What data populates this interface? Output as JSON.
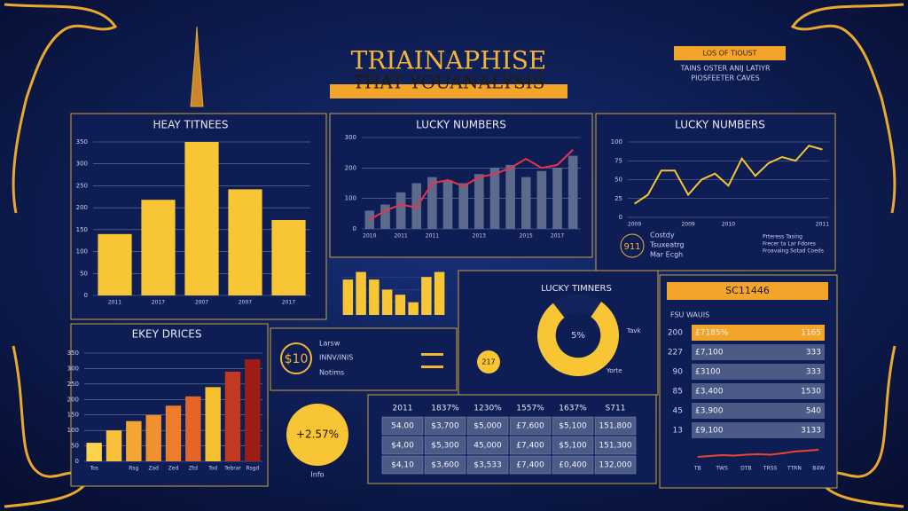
{
  "header": {
    "title": "TRIAINAPHISE",
    "subtitle": "THAT YOUANALYSIS"
  },
  "info_box": {
    "label": "LOS OF TIOUST",
    "lines": [
      "TAINS OSTER ANIJ LATIYR",
      "PIOSFEETER CAVES"
    ]
  },
  "badge": {
    "value": "$10",
    "lines": [
      "Larsw",
      "INNV/INIS",
      "Notims"
    ]
  },
  "change_circle": {
    "value": "+2.57%",
    "label": "Info"
  },
  "legend_notes": {
    "badge": "911",
    "left": [
      "Costdy",
      "Tsuxeatrg",
      "Mar Ecgh"
    ],
    "right": [
      "Prteress Tasing",
      "Frecer ta Lar Fdores",
      "Froavaing Sotad Coeds"
    ]
  },
  "table": {
    "header": [
      "2011",
      "1837%",
      "1230%",
      "1557%",
      "1637%",
      "S711"
    ],
    "rows": [
      [
        "54.00",
        "$3,700",
        "$5,000",
        "£7,600",
        "$5,100",
        "151,800"
      ],
      [
        "$4,00",
        "$5,300",
        "45,000",
        "£7,400",
        "$5,100",
        "151,300"
      ],
      [
        "$4,10",
        "$3,600",
        "$3,533",
        "£7,400",
        "£0,400",
        "132,000"
      ]
    ]
  },
  "side_table": {
    "title": "SC11446",
    "subtitle": "FSU WAUIS",
    "rows": [
      [
        "200",
        "£7185%",
        "1165"
      ],
      [
        "227",
        "£7,100",
        "333"
      ],
      [
        "90",
        "£3100",
        "333"
      ],
      [
        "85",
        "£3,400",
        "1530"
      ],
      [
        "45",
        "£3,900",
        "540"
      ],
      [
        "13",
        "£9,100",
        "3133"
      ]
    ]
  },
  "chart_data": [
    {
      "type": "bar",
      "title": "HEAY TITNEES",
      "categories": [
        "2011",
        "2017",
        "2007",
        "2007",
        "2017"
      ],
      "values": [
        140,
        218,
        350,
        242,
        172
      ],
      "color": "#f8c534",
      "ylim": [
        0,
        350
      ],
      "yticks": [
        0,
        50,
        100,
        150,
        200,
        250,
        300,
        350
      ],
      "grid": true
    },
    {
      "type": "combo",
      "title": "LUCKY NUMBERS",
      "categories": [
        "2010",
        null,
        "2011",
        null,
        "2011",
        null,
        null,
        "2013",
        null,
        null,
        "2015",
        null,
        "2017",
        null
      ],
      "series": [
        {
          "type": "bar",
          "color": "#5d6a8c",
          "values": [
            60,
            80,
            120,
            150,
            170,
            160,
            150,
            180,
            200,
            210,
            170,
            190,
            200,
            240
          ]
        },
        {
          "type": "line",
          "color": "#e8334a",
          "values": [
            30,
            60,
            80,
            70,
            150,
            160,
            140,
            170,
            180,
            200,
            230,
            200,
            210,
            260
          ]
        }
      ],
      "ylim": [
        0,
        300
      ],
      "yticks": [
        0,
        100,
        200,
        300
      ],
      "grid": true
    },
    {
      "type": "line",
      "title": "LUCKY NUMBERS",
      "categories": [
        "2009",
        null,
        null,
        null,
        "2009",
        null,
        null,
        "2010",
        null,
        null,
        null,
        null,
        null,
        null,
        "2011"
      ],
      "color": "#f5c431",
      "values": [
        18,
        30,
        62,
        62,
        30,
        50,
        58,
        42,
        78,
        55,
        72,
        80,
        75,
        95,
        90
      ],
      "ylim": [
        0,
        100
      ],
      "yticks": [
        0,
        25,
        50,
        75,
        100
      ],
      "grid": true
    },
    {
      "type": "bar",
      "categories": [
        null,
        null,
        null,
        null,
        null,
        null,
        null,
        null
      ],
      "values": [
        70,
        85,
        70,
        50,
        40,
        25,
        75,
        85
      ],
      "color": "#f8c534",
      "ylim": [
        0,
        100
      ],
      "grid": true
    },
    {
      "type": "pie",
      "title": "LUCKY TIMNERS",
      "center_label": "5%",
      "side_labels": [
        "Tavk",
        "Yorte",
        "217"
      ],
      "values": [
        80,
        20
      ],
      "colors": [
        "#f8c534",
        "#13235c"
      ]
    },
    {
      "type": "bar",
      "title": "EKEY DRICES",
      "categories": [
        "Tos",
        null,
        "Rsg",
        "Zad",
        "Zed",
        "Ztd",
        "Tod",
        "Tebrar",
        "Rsgd"
      ],
      "values": [
        60,
        100,
        130,
        150,
        180,
        210,
        240,
        290,
        330
      ],
      "colors": [
        "#fbd44a",
        "#f9c03c",
        "#f5a533",
        "#f0902f",
        "#ec7d2b",
        "#e56428",
        "#f5c02e",
        "#c43a20",
        "#9e1c16"
      ],
      "ylim": [
        0,
        350
      ],
      "yticks": [
        0,
        50,
        100,
        150,
        200,
        250,
        300,
        350
      ],
      "grid": true
    },
    {
      "type": "line",
      "categories": [
        "TB",
        null,
        "TWS",
        null,
        "DTB",
        null,
        "TRSS",
        null,
        "TTRN",
        null,
        "B4W"
      ],
      "color": "#e8452f",
      "values": [
        10,
        12,
        14,
        13,
        15,
        16,
        15,
        18,
        22,
        24,
        26
      ],
      "ylim": [
        0,
        100
      ],
      "grid": false
    }
  ]
}
